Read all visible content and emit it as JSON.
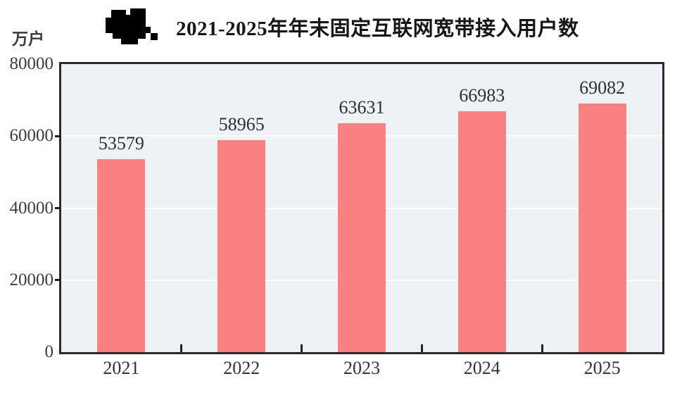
{
  "header": {
    "title": "2021-2025年年末固定互联网宽带接入用户数"
  },
  "y_axis": {
    "unit_label": "万户"
  },
  "chart_data": {
    "type": "bar",
    "title": "2021-2025年年末固定互联网宽带接入用户数",
    "xlabel": "",
    "ylabel": "万户",
    "categories": [
      "2021",
      "2022",
      "2023",
      "2024",
      "2025"
    ],
    "values": [
      53579,
      58965,
      63631,
      66983,
      69082
    ],
    "data_labels": [
      "53579",
      "58965",
      "63631",
      "66983",
      "69082"
    ],
    "ylim": [
      0,
      80000
    ],
    "yticks": [
      0,
      20000,
      40000,
      60000,
      80000
    ],
    "gridlines": [
      20000,
      40000,
      60000
    ],
    "grid_on": true,
    "legend_position": "none",
    "colors": {
      "bar": "#FA8181",
      "plot_background": "#EDF2F5",
      "frame": "#2B2B2B",
      "gridline": "#FFFFFF",
      "tick_mark": "#222222",
      "label_text": "#2E2E2E"
    }
  }
}
